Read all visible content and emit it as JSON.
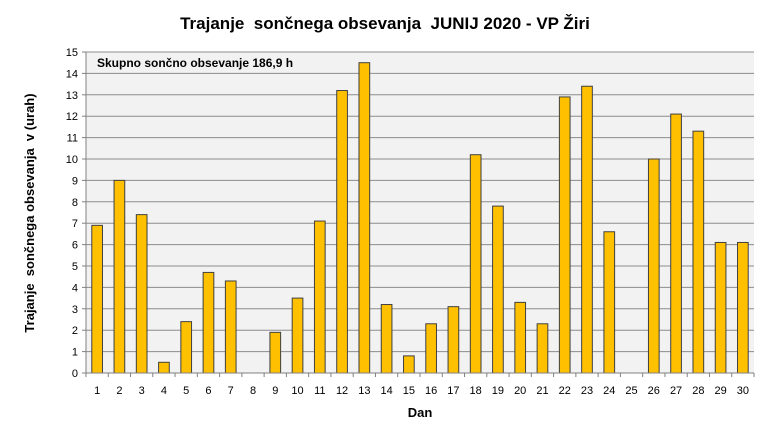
{
  "chart_data": {
    "type": "bar",
    "title": "Trajanje  sončnega obsevanja  JUNIJ 2020 - VP Žiri",
    "xlabel": "Dan",
    "ylabel": "Trajanje  sončnega obsevanja  v (urah)",
    "annotation": "Skupno sončno obsevanje 186,9 h",
    "ylim": [
      0,
      15
    ],
    "yticks": [
      "0",
      "1",
      "2",
      "3",
      "4",
      "5",
      "6",
      "7",
      "8",
      "9",
      "10",
      "11",
      "12",
      "13",
      "14",
      "15"
    ],
    "grid": true,
    "categories": [
      "1",
      "2",
      "3",
      "4",
      "5",
      "6",
      "7",
      "8",
      "9",
      "10",
      "11",
      "12",
      "13",
      "14",
      "15",
      "16",
      "17",
      "18",
      "19",
      "20",
      "21",
      "22",
      "23",
      "24",
      "25",
      "26",
      "27",
      "28",
      "29",
      "30"
    ],
    "values": [
      6.9,
      9.0,
      7.4,
      0.5,
      2.4,
      4.7,
      4.3,
      0,
      1.9,
      3.5,
      7.1,
      13.2,
      14.5,
      3.2,
      0.8,
      2.3,
      3.1,
      10.2,
      7.8,
      3.3,
      2.3,
      12.9,
      13.4,
      6.6,
      0,
      10.0,
      12.1,
      11.3,
      6.1,
      6.1
    ],
    "bar_color": "#FFC000",
    "bar_edge_color": "#404040",
    "plot_background": "#F2F2F2"
  }
}
